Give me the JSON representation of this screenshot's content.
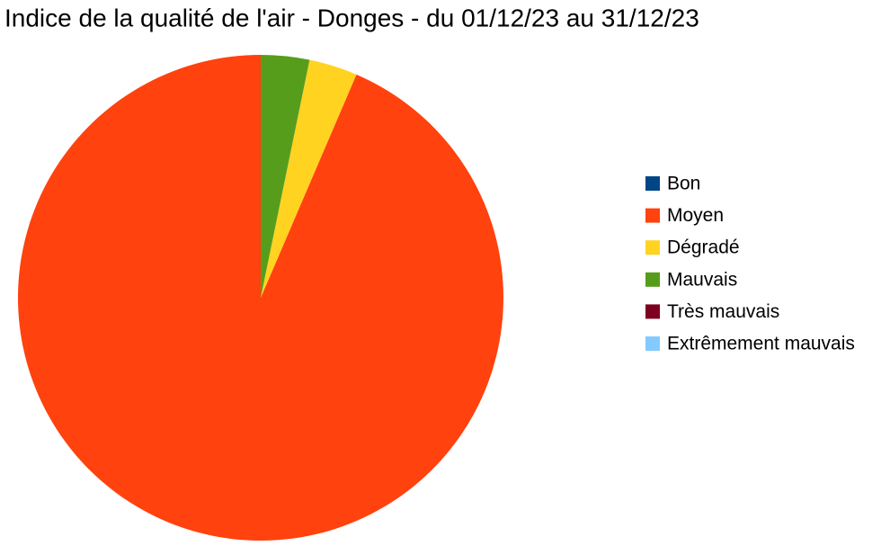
{
  "chart_data": {
    "type": "pie",
    "title": "Indice de la qualité de l'air - Donges - du 01/12/23 au 31/12/23",
    "categories": [
      "Bon",
      "Moyen",
      "Dégradé",
      "Mauvais",
      "Très mauvais",
      "Extrêmement mauvais"
    ],
    "values": [
      0,
      29,
      1,
      1,
      0,
      0
    ],
    "colors": [
      "#004586",
      "#ff420e",
      "#ffd320",
      "#579d1c",
      "#7e0021",
      "#83caff"
    ],
    "legend": "right"
  }
}
